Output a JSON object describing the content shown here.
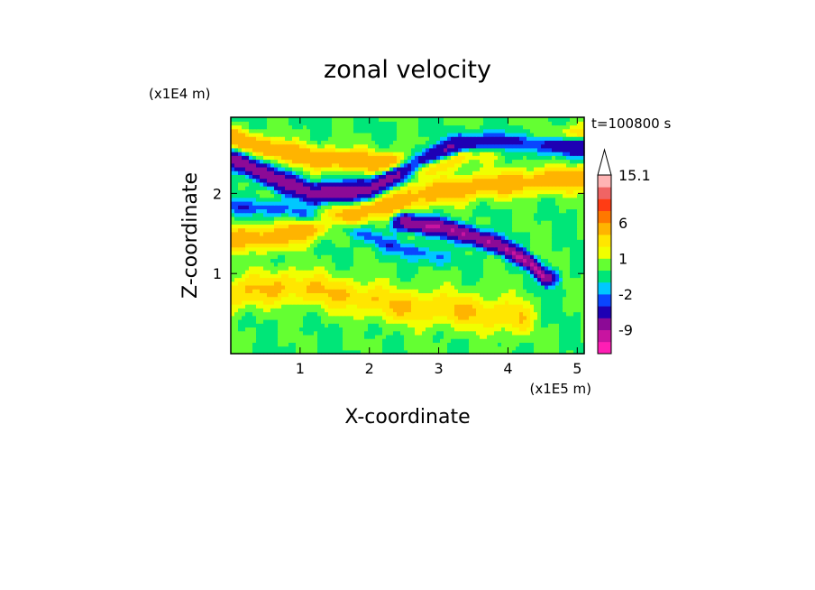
{
  "chart_data": {
    "type": "heatmap",
    "title": "zonal velocity",
    "xlabel": "X-coordinate",
    "ylabel": "Z-coordinate",
    "x_scale_label": "(x1E5 m)",
    "y_scale_label": "(x1E4 m)",
    "time_label": "t=100800 s",
    "xlim": [
      0,
      5.1
    ],
    "ylim": [
      0,
      2.95
    ],
    "x_ticks": [
      "1",
      "2",
      "3",
      "4",
      "5"
    ],
    "x_tick_values": [
      1,
      2,
      3,
      4,
      5
    ],
    "y_ticks": [
      "1",
      "2"
    ],
    "y_tick_values": [
      1,
      2
    ],
    "colorbar": {
      "tick_labels": [
        "15.1",
        "6",
        "1",
        "-2",
        "-9"
      ],
      "levels": [
        -15,
        -12,
        -9,
        -6,
        -3,
        -2,
        -1,
        0,
        1,
        2,
        3,
        6,
        9,
        12,
        15
      ],
      "colors": [
        "#ff1eb4",
        "#c814a0",
        "#8c0a96",
        "#1e00b4",
        "#0a46ff",
        "#00c8ff",
        "#00e678",
        "#64ff32",
        "#f0ff00",
        "#ffe600",
        "#ffb400",
        "#ff7800",
        "#ff3c14",
        "#f06464",
        "#ffb4b4"
      ]
    },
    "bands": [
      {
        "name": "upper positive band",
        "kind": "pos",
        "points": [
          [
            0,
            2.7
          ],
          [
            0.6,
            2.55
          ],
          [
            1.2,
            2.45
          ],
          [
            2.0,
            2.4
          ],
          [
            2.8,
            2.35
          ],
          [
            3.5,
            2.55
          ],
          [
            4.2,
            2.65
          ],
          [
            5.1,
            2.7
          ]
        ],
        "halfwidth": 0.13,
        "amp": 5
      },
      {
        "name": "upper negative band",
        "kind": "neg",
        "points": [
          [
            0,
            2.45
          ],
          [
            0.6,
            2.2
          ],
          [
            1.2,
            2.0
          ],
          [
            2.0,
            2.05
          ],
          [
            2.6,
            2.35
          ],
          [
            3.3,
            2.6
          ],
          [
            4.2,
            2.65
          ],
          [
            5.1,
            2.6
          ]
        ],
        "halfwidth": 0.12,
        "amp": -8
      },
      {
        "name": "middle positive band",
        "kind": "pos",
        "points": [
          [
            0,
            1.45
          ],
          [
            0.7,
            1.45
          ],
          [
            1.4,
            1.65
          ],
          [
            2.2,
            1.85
          ],
          [
            2.8,
            2.0
          ],
          [
            3.6,
            2.1
          ],
          [
            4.3,
            2.15
          ],
          [
            5.1,
            2.2
          ]
        ],
        "halfwidth": 0.16,
        "amp": 4
      },
      {
        "name": "middle negative band",
        "kind": "neg",
        "points": [
          [
            2.5,
            1.65
          ],
          [
            3.2,
            1.55
          ],
          [
            3.9,
            1.35
          ],
          [
            4.3,
            1.15
          ],
          [
            4.55,
            0.95
          ]
        ],
        "halfwidth": 0.1,
        "amp": -9
      },
      {
        "name": "lower positive band",
        "kind": "pos",
        "points": [
          [
            0,
            0.75
          ],
          [
            0.8,
            0.85
          ],
          [
            1.6,
            0.75
          ],
          [
            2.4,
            0.6
          ],
          [
            3.3,
            0.55
          ],
          [
            4.2,
            0.45
          ]
        ],
        "halfwidth": 0.22,
        "amp": 3
      },
      {
        "name": "lower negative band",
        "kind": "neg",
        "points": [
          [
            0,
            1.85
          ],
          [
            0.8,
            1.8
          ],
          [
            1.6,
            1.6
          ],
          [
            2.3,
            1.35
          ],
          [
            3.0,
            1.2
          ]
        ],
        "halfwidth": 0.1,
        "amp": -2.5
      }
    ]
  }
}
